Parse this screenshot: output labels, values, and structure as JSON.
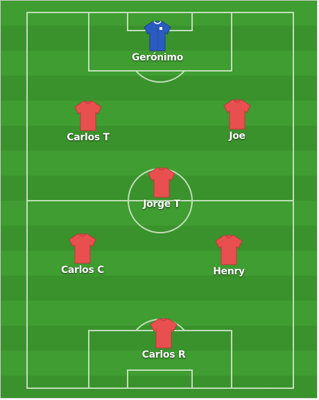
{
  "colors": {
    "pitch_light": "#3f9d31",
    "pitch_dark": "#3a922c",
    "line": "#d9ecd2",
    "outfield_jersey": "#e8504f",
    "goalkeeper_jersey": "#2a5bc0"
  },
  "players": [
    {
      "name": "Gerónimo",
      "role": "goalkeeper",
      "jersey_color": "#2a5bc0",
      "icon": "blue-jersey-icon"
    },
    {
      "name": "Carlos T",
      "role": "outfield",
      "jersey_color": "#e8504f",
      "icon": "red-jersey-icon"
    },
    {
      "name": "Joe",
      "role": "outfield",
      "jersey_color": "#e8504f",
      "icon": "red-jersey-icon"
    },
    {
      "name": "Jorge T",
      "role": "outfield",
      "jersey_color": "#e8504f",
      "icon": "red-jersey-icon"
    },
    {
      "name": "Carlos C",
      "role": "outfield",
      "jersey_color": "#e8504f",
      "icon": "red-jersey-icon"
    },
    {
      "name": "Henry",
      "role": "outfield",
      "jersey_color": "#e8504f",
      "icon": "red-jersey-icon"
    },
    {
      "name": "Carlos R",
      "role": "outfield",
      "jersey_color": "#e8504f",
      "icon": "red-jersey-icon"
    }
  ]
}
